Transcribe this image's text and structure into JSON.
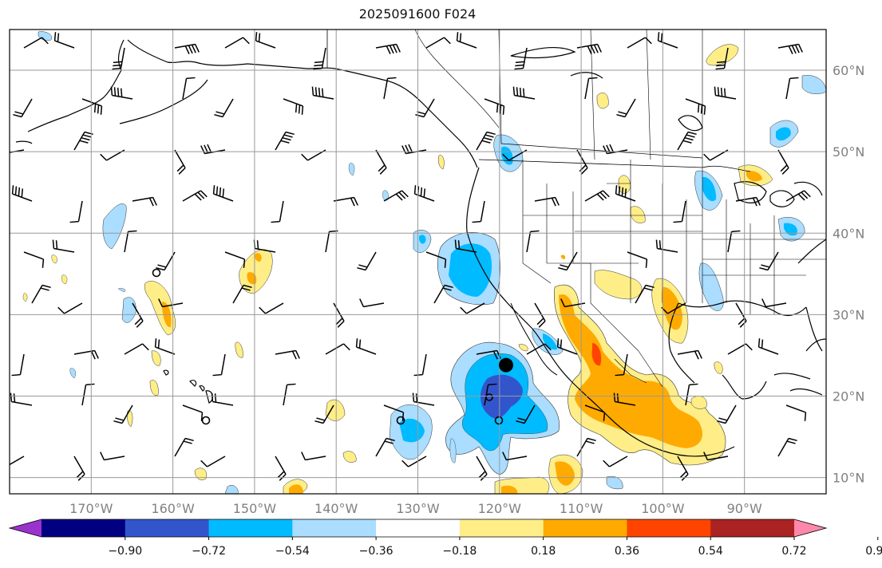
{
  "title": "2025091600 F024",
  "map": {
    "projection": "PlateCarree",
    "lon_range": [
      -180,
      -80
    ],
    "lat_range": [
      8,
      65
    ],
    "grid": true,
    "lon_ticks": [
      {
        "value": -170,
        "label": "170°W"
      },
      {
        "value": -160,
        "label": "160°W"
      },
      {
        "value": -150,
        "label": "150°W"
      },
      {
        "value": -140,
        "label": "140°W"
      },
      {
        "value": -130,
        "label": "130°W"
      },
      {
        "value": -120,
        "label": "120°W"
      },
      {
        "value": -110,
        "label": "110°W"
      },
      {
        "value": -100,
        "label": "100°W"
      },
      {
        "value": -90,
        "label": "90°W"
      }
    ],
    "lat_ticks": [
      {
        "value": 60,
        "label": "60°N"
      },
      {
        "value": 50,
        "label": "50°N"
      },
      {
        "value": 40,
        "label": "40°N"
      },
      {
        "value": 30,
        "label": "30°N"
      },
      {
        "value": 20,
        "label": "20°N"
      },
      {
        "value": 10,
        "label": "10°N"
      }
    ],
    "marker": {
      "lon": -119.2,
      "lat": 23.8,
      "name": "storm-center"
    }
  },
  "colorbar": {
    "extend": "both",
    "colors": [
      "#9933cc",
      "#000080",
      "#3355cc",
      "#00bbff",
      "#aaddff",
      "#ffffff",
      "#ffee88",
      "#ffaa00",
      "#ff4400",
      "#aa2222",
      "#ff88aa"
    ],
    "tick_labels": [
      "−0.90",
      "−0.72",
      "−0.54",
      "−0.36",
      "−0.18",
      "0.18",
      "0.36",
      "0.54",
      "0.72",
      "0.90"
    ]
  },
  "colors": {
    "coast": "#000000",
    "grid": "#999999",
    "barb": "#000000"
  }
}
